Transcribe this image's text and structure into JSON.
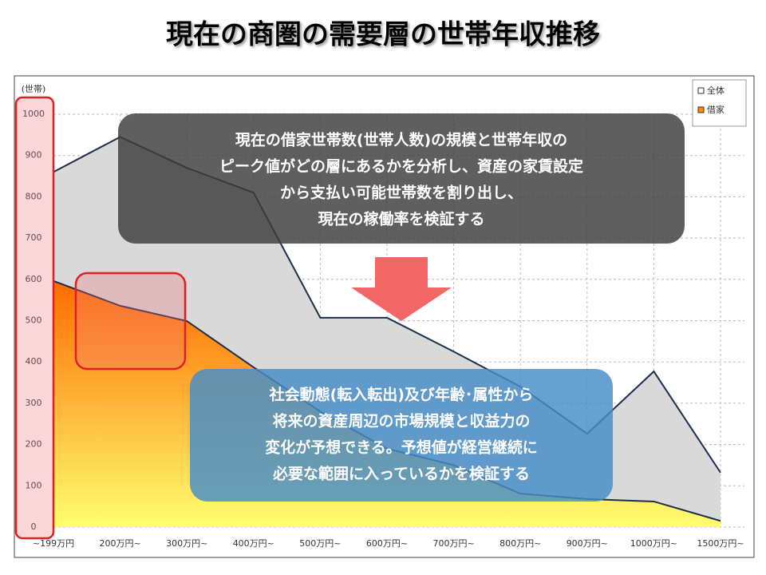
{
  "chart_data": {
    "type": "area",
    "title": "現在の商圏の需要層の世帯年収推移",
    "ylabel": "(世帯)",
    "categories": [
      "~199万円",
      "200万円~",
      "300万円~",
      "400万円~",
      "500万円~",
      "600万円~",
      "700万円~",
      "800万円~",
      "900万円~",
      "1000万円~",
      "1500万円~"
    ],
    "series": [
      {
        "name": "全体",
        "color": "#d9d9d9",
        "values": [
          860,
          945,
          870,
          810,
          507,
          507,
          425,
          340,
          226,
          377,
          132
        ]
      },
      {
        "name": "借家",
        "color": "#ff8c00",
        "values": [
          596,
          536,
          499,
          387,
          280,
          190,
          150,
          81,
          68,
          62,
          15
        ]
      }
    ],
    "ylim": [
      0,
      1000
    ],
    "yticks": [
      0,
      100,
      200,
      300,
      400,
      500,
      600,
      700,
      800,
      900,
      1000
    ],
    "grid": true,
    "legend": "top-right"
  },
  "callouts": [
    [
      "現在の借家世帯数(世帯人数)の規模と世帯年収の",
      "ピーク値がどの層にあるかを分析し、資産の家賃設定",
      "から支払い可能世帯数を割り出し、",
      "現在の稼働率を検証する"
    ],
    [
      "社会動態(転入転出)及び年齢･属性から",
      "将来の資産周辺の市場規模と収益力の",
      "変化が予想できる。予想値が経営継続に",
      "必要な範囲に入っているかを検証する"
    ]
  ]
}
